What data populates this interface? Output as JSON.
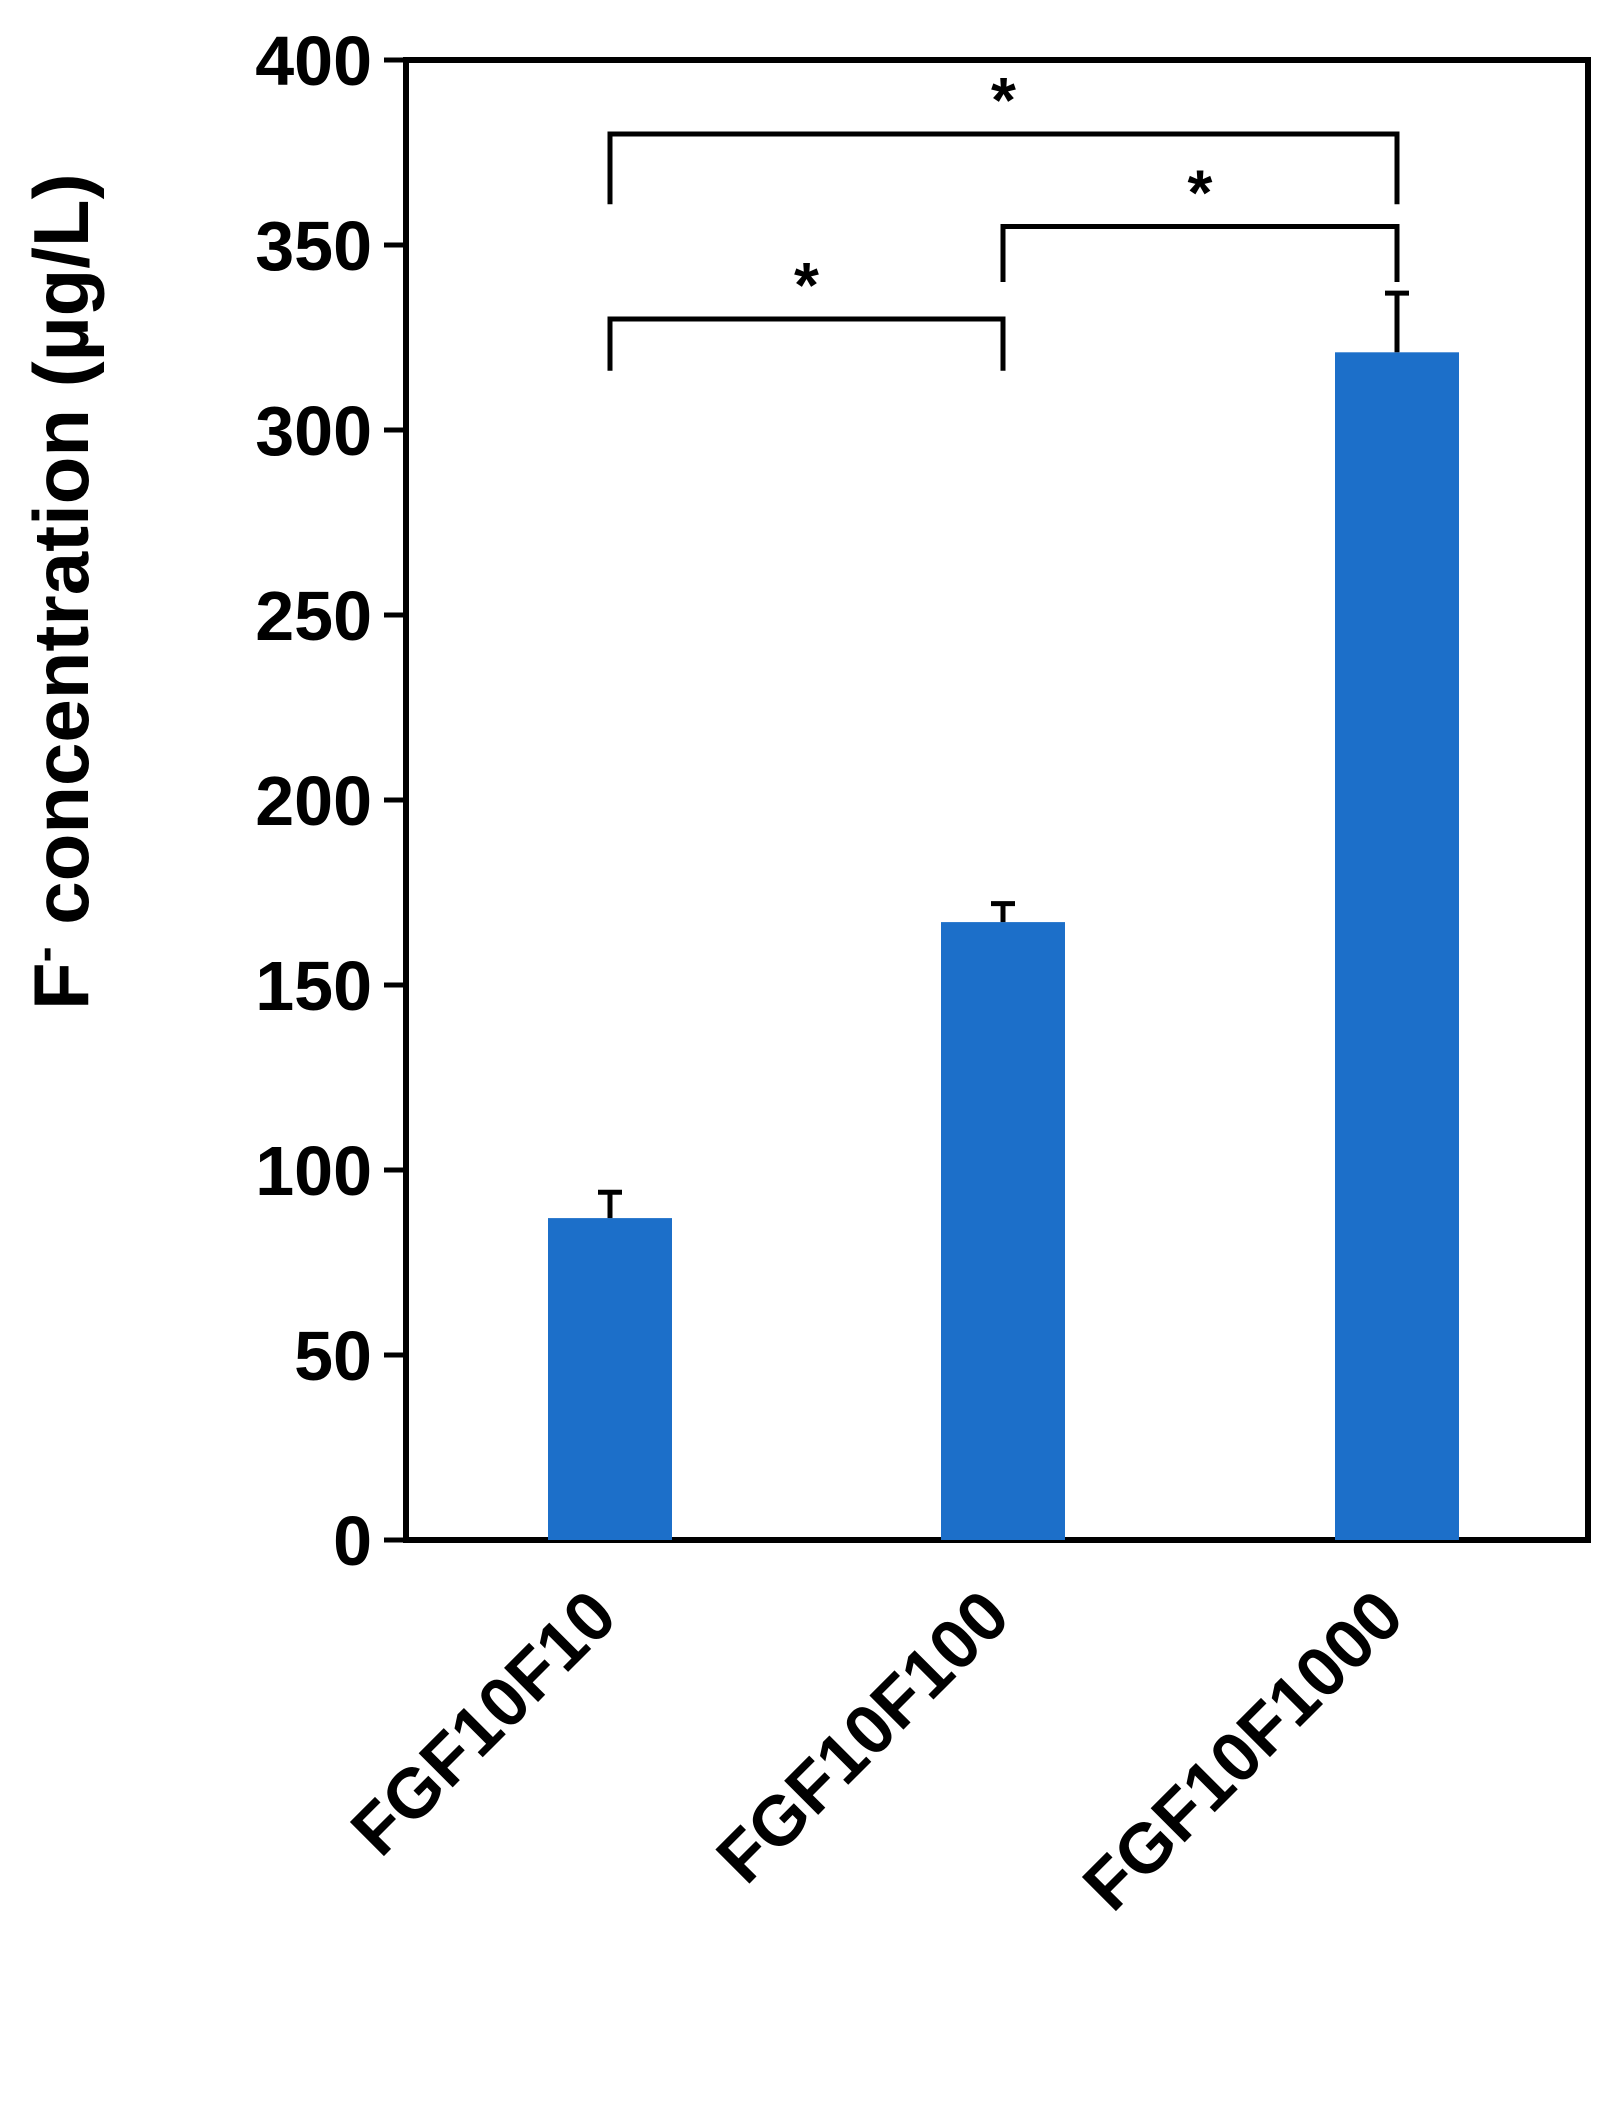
{
  "chart_data": {
    "type": "bar",
    "categories": [
      "FGF10F10",
      "FGF10F100",
      "FGF10F1000"
    ],
    "values": [
      87,
      167,
      321
    ],
    "errors": [
      7,
      5,
      16
    ],
    "ylabel": "F",
    "ylabel_superscript": "-",
    "ylabel_rest": " concentration (µg/L)",
    "ylim": [
      0,
      400
    ],
    "yticks": [
      "0",
      "50",
      "100",
      "150",
      "200",
      "250",
      "300",
      "350",
      "400"
    ],
    "bar_color": "#1c6fc9",
    "grid": false,
    "legend": "none",
    "significance": [
      {
        "from": 0,
        "to": 1,
        "label": "*"
      },
      {
        "from": 1,
        "to": 2,
        "label": "*"
      },
      {
        "from": 0,
        "to": 2,
        "label": "*"
      }
    ]
  }
}
